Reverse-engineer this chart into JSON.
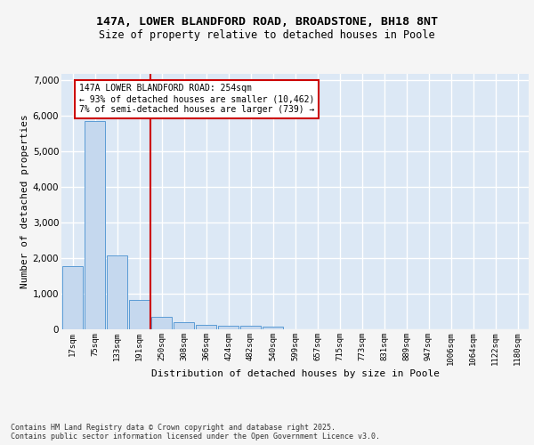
{
  "title1": "147A, LOWER BLANDFORD ROAD, BROADSTONE, BH18 8NT",
  "title2": "Size of property relative to detached houses in Poole",
  "xlabel": "Distribution of detached houses by size in Poole",
  "ylabel": "Number of detached properties",
  "categories": [
    "17sqm",
    "75sqm",
    "133sqm",
    "191sqm",
    "250sqm",
    "308sqm",
    "366sqm",
    "424sqm",
    "482sqm",
    "540sqm",
    "599sqm",
    "657sqm",
    "715sqm",
    "773sqm",
    "831sqm",
    "889sqm",
    "947sqm",
    "1006sqm",
    "1064sqm",
    "1122sqm",
    "1180sqm"
  ],
  "values": [
    1780,
    5850,
    2080,
    820,
    340,
    200,
    130,
    110,
    100,
    80,
    0,
    0,
    0,
    0,
    0,
    0,
    0,
    0,
    0,
    0,
    0
  ],
  "bar_color": "#c5d8ee",
  "bar_edge_color": "#5b9bd5",
  "vline_index": 4,
  "vline_color": "#cc0000",
  "annotation_text": "147A LOWER BLANDFORD ROAD: 254sqm\n← 93% of detached houses are smaller (10,462)\n7% of semi-detached houses are larger (739) →",
  "annotation_box_facecolor": "#ffffff",
  "annotation_box_edgecolor": "#cc0000",
  "ylim_max": 7200,
  "yticks": [
    0,
    1000,
    2000,
    3000,
    4000,
    5000,
    6000,
    7000
  ],
  "plot_bg_color": "#dce8f5",
  "fig_bg_color": "#f5f5f5",
  "grid_color": "#ffffff",
  "footer": "Contains HM Land Registry data © Crown copyright and database right 2025.\nContains public sector information licensed under the Open Government Licence v3.0.",
  "title1_fontsize": 9.5,
  "title2_fontsize": 8.5,
  "axis_label_fontsize": 8,
  "tick_fontsize": 6.5,
  "annotation_fontsize": 7,
  "footer_fontsize": 6
}
